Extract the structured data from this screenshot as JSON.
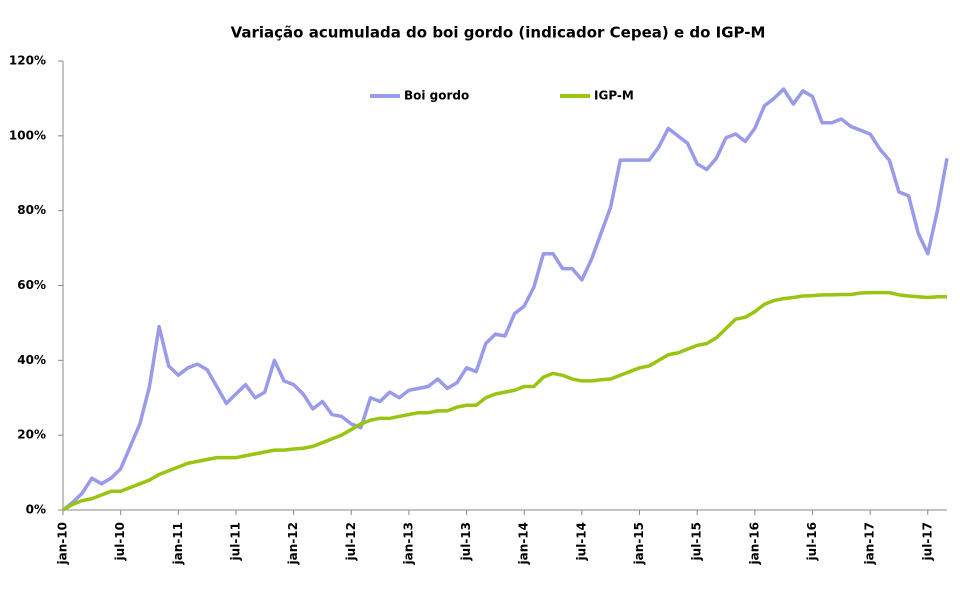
{
  "chart_data": {
    "type": "line",
    "title": "Variação acumulada do boi gordo (indicador Cepea) e do IGP-M",
    "categories": [
      "jan-10",
      null,
      null,
      null,
      null,
      null,
      "jul-10",
      null,
      null,
      null,
      null,
      null,
      "jan-11",
      null,
      null,
      null,
      null,
      null,
      "jul-11",
      null,
      null,
      null,
      null,
      null,
      "jan-12",
      null,
      null,
      null,
      null,
      null,
      "jul-12",
      null,
      null,
      null,
      null,
      null,
      "jan-13",
      null,
      null,
      null,
      null,
      null,
      "jul-13",
      null,
      null,
      null,
      null,
      null,
      "jan-14",
      null,
      null,
      null,
      null,
      null,
      "jul-14",
      null,
      null,
      null,
      null,
      null,
      "jan-15",
      null,
      null,
      null,
      null,
      null,
      "jul-15",
      null,
      null,
      null,
      null,
      null,
      "jan-16",
      null,
      null,
      null,
      null,
      null,
      "jul-16",
      null,
      null,
      null,
      null,
      null,
      "jan-17",
      null,
      null,
      null,
      null,
      null,
      "jul-17",
      null,
      null
    ],
    "series": [
      {
        "name": "Boi gordo",
        "color": "#9a9aea",
        "values": [
          0,
          2,
          4.5,
          8.5,
          7,
          8.5,
          11,
          17,
          23,
          33,
          49,
          38.5,
          36,
          38,
          39,
          37.5,
          33,
          28.5,
          31,
          33.5,
          30,
          31.5,
          40,
          34.5,
          33.5,
          31,
          27,
          29,
          25.5,
          25,
          23,
          22,
          30,
          29,
          31.5,
          30,
          32,
          32.5,
          33,
          35,
          32.5,
          34,
          38,
          37,
          44.5,
          47,
          46.5,
          52.5,
          54.5,
          59.5,
          68.5,
          68.5,
          64.5,
          64.5,
          61.5,
          67,
          74,
          81,
          93.5,
          93.5,
          93.5,
          93.5,
          97,
          102,
          100,
          98,
          92.5,
          91,
          94,
          99.5,
          100.5,
          98.5,
          102,
          108,
          110,
          112.5,
          108.5,
          112,
          110.5,
          103.5,
          103.5,
          104.5,
          102.5,
          101.5,
          100.5,
          96.5,
          93.5,
          85,
          84,
          74,
          68.5,
          80,
          94
        ]
      },
      {
        "name": "IGP-M",
        "color": "#99c412",
        "values": [
          0,
          1.5,
          2.5,
          3,
          4,
          5,
          5,
          6,
          7,
          8,
          9.5,
          10.5,
          11.5,
          12.5,
          13,
          13.5,
          14,
          14,
          14,
          14.5,
          15,
          15.5,
          16,
          16,
          16.3,
          16.5,
          17,
          18,
          19,
          20,
          21.5,
          23,
          24,
          24.5,
          24.5,
          25,
          25.5,
          26,
          26,
          26.5,
          26.5,
          27.5,
          28,
          28,
          30,
          31,
          31.5,
          32,
          33,
          33,
          35.5,
          36.5,
          36,
          35,
          34.5,
          34.5,
          34.8,
          35,
          36,
          37,
          38,
          38.5,
          40,
          41.5,
          42,
          43,
          44,
          44.5,
          46,
          48.5,
          51,
          51.5,
          53,
          55,
          56,
          56.5,
          56.8,
          57.2,
          57.3,
          57.5,
          57.5,
          57.6,
          57.6,
          58,
          58.1,
          58.1,
          58.1,
          57.5,
          57.2,
          57,
          56.8,
          57,
          57
        ]
      }
    ],
    "ylim": [
      0,
      120
    ],
    "yticks": [
      {
        "value": 0,
        "label": "0%"
      },
      {
        "value": 20,
        "label": "20%"
      },
      {
        "value": 40,
        "label": "40%"
      },
      {
        "value": 60,
        "label": "60%"
      },
      {
        "value": 80,
        "label": "80%"
      },
      {
        "value": 100,
        "label": "100%"
      },
      {
        "value": 120,
        "label": "120%"
      }
    ],
    "grid": false,
    "legend": "top"
  }
}
